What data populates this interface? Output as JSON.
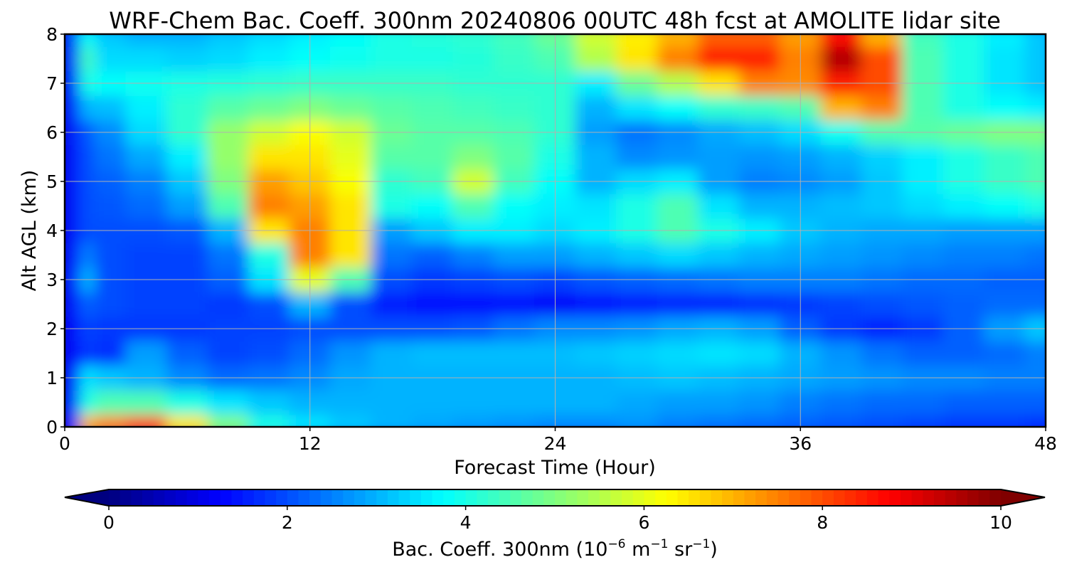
{
  "chart_data": {
    "type": "heatmap",
    "title": "WRF-Chem Bac. Coeff. 300nm  20240806 00UTC 48h fcst at AMOLITE lidar site",
    "xlabel": "Forecast Time (Hour)",
    "ylabel": "Alt AGL (km)",
    "xlim": [
      0,
      48
    ],
    "ylim": [
      0,
      8
    ],
    "xticks": [
      0,
      12,
      24,
      36,
      48
    ],
    "yticks": [
      0,
      1,
      2,
      3,
      4,
      5,
      6,
      7,
      8
    ],
    "grid": true,
    "x": [
      0,
      0.5,
      1,
      2,
      4,
      6,
      8,
      10,
      12,
      14,
      16,
      18,
      20,
      22,
      24,
      26,
      28,
      30,
      32,
      34,
      36,
      38,
      40,
      42,
      44,
      46,
      48
    ],
    "y": [
      0,
      0.5,
      1,
      1.5,
      2,
      2.5,
      3,
      3.5,
      4,
      4.5,
      5,
      5.5,
      6,
      6.5,
      7,
      7.5,
      8
    ],
    "z": [
      [
        1.0,
        1.5,
        7.0,
        7.5,
        8.0,
        6.5,
        5.0,
        4.0,
        3.5,
        3.2,
        3.0,
        2.9,
        2.8,
        2.7,
        2.6,
        2.6,
        2.7,
        2.5,
        2.4,
        2.3,
        2.2,
        2.1,
        2.0,
        1.9,
        1.8,
        1.8,
        1.7
      ],
      [
        1.0,
        1.8,
        4.0,
        4.5,
        4.5,
        4.0,
        3.5,
        3.2,
        3.0,
        3.0,
        3.0,
        3.0,
        3.0,
        3.0,
        3.0,
        3.0,
        2.9,
        2.8,
        2.8,
        2.7,
        2.5,
        2.4,
        2.3,
        2.3,
        2.2,
        2.2,
        2.2
      ],
      [
        1.0,
        1.5,
        3.5,
        3.2,
        3.0,
        2.6,
        2.3,
        2.4,
        2.6,
        2.9,
        3.0,
        3.0,
        3.0,
        3.0,
        3.0,
        3.0,
        3.1,
        3.2,
        3.1,
        3.0,
        2.9,
        2.8,
        2.7,
        2.6,
        2.6,
        2.5,
        2.5
      ],
      [
        1.0,
        1.4,
        1.8,
        1.7,
        2.8,
        2.2,
        1.9,
        2.0,
        2.3,
        2.7,
        3.0,
        3.1,
        3.1,
        3.1,
        3.1,
        3.2,
        3.3,
        3.4,
        3.5,
        3.4,
        3.0,
        2.7,
        2.4,
        2.2,
        2.2,
        2.3,
        2.5
      ],
      [
        1.0,
        1.4,
        1.9,
        1.8,
        1.8,
        1.8,
        1.9,
        1.9,
        2.0,
        2.0,
        2.0,
        2.0,
        2.1,
        2.4,
        2.6,
        2.6,
        2.7,
        2.9,
        3.0,
        2.8,
        2.2,
        1.8,
        1.6,
        1.8,
        2.2,
        2.8,
        3.2
      ],
      [
        1.0,
        1.5,
        2.2,
        2.0,
        1.9,
        1.9,
        1.8,
        2.0,
        3.0,
        2.0,
        1.5,
        1.4,
        1.4,
        1.4,
        1.2,
        1.4,
        1.5,
        1.6,
        1.6,
        1.7,
        1.8,
        1.9,
        2.0,
        2.1,
        2.2,
        2.3,
        2.3
      ],
      [
        1.0,
        1.5,
        3.0,
        2.0,
        1.9,
        1.9,
        2.2,
        3.5,
        6.0,
        4.5,
        2.0,
        1.8,
        1.9,
        2.0,
        1.9,
        2.1,
        2.2,
        2.3,
        2.4,
        2.5,
        2.5,
        2.5,
        2.4,
        2.3,
        2.3,
        2.2,
        2.2
      ],
      [
        1.0,
        1.5,
        2.5,
        2.0,
        1.9,
        1.9,
        2.4,
        4.0,
        7.5,
        6.5,
        2.4,
        2.2,
        2.5,
        2.8,
        2.8,
        3.0,
        3.2,
        3.4,
        3.2,
        3.0,
        2.9,
        2.8,
        2.7,
        2.6,
        2.5,
        2.5,
        2.4
      ],
      [
        1.0,
        1.5,
        2.0,
        2.0,
        2.0,
        2.1,
        3.0,
        6.5,
        7.5,
        6.5,
        2.8,
        3.2,
        3.6,
        3.6,
        3.4,
        3.6,
        4.0,
        4.5,
        4.0,
        3.6,
        3.2,
        3.0,
        2.9,
        2.9,
        2.8,
        2.8,
        2.8
      ],
      [
        1.0,
        1.5,
        2.0,
        2.1,
        2.3,
        2.8,
        4.5,
        7.5,
        7.2,
        6.5,
        4.0,
        3.8,
        4.5,
        3.8,
        3.6,
        3.5,
        4.0,
        4.5,
        3.5,
        3.0,
        3.0,
        3.1,
        3.2,
        3.4,
        3.6,
        3.8,
        4.0
      ],
      [
        1.0,
        1.5,
        2.0,
        2.2,
        2.5,
        3.2,
        5.0,
        7.2,
        6.8,
        6.2,
        4.2,
        4.4,
        5.8,
        4.4,
        3.8,
        3.0,
        3.4,
        3.6,
        2.8,
        2.5,
        2.6,
        2.8,
        3.2,
        3.6,
        4.0,
        4.3,
        4.5
      ],
      [
        1.0,
        1.5,
        2.0,
        2.4,
        2.9,
        3.6,
        5.2,
        6.5,
        6.5,
        6.0,
        4.6,
        4.6,
        5.0,
        4.6,
        4.0,
        3.0,
        2.6,
        2.7,
        2.8,
        2.7,
        2.8,
        3.0,
        3.3,
        3.6,
        4.0,
        4.3,
        4.5
      ],
      [
        1.0,
        1.6,
        2.1,
        2.6,
        3.4,
        4.2,
        5.2,
        5.8,
        6.2,
        5.8,
        4.8,
        4.6,
        4.6,
        4.5,
        4.2,
        2.8,
        2.4,
        2.6,
        2.9,
        3.1,
        3.4,
        3.9,
        4.5,
        4.6,
        4.8,
        5.0,
        5.0
      ],
      [
        1.0,
        1.7,
        3.0,
        3.1,
        3.6,
        4.2,
        4.6,
        4.8,
        5.0,
        4.8,
        4.6,
        4.5,
        4.4,
        4.3,
        4.2,
        3.0,
        3.5,
        3.8,
        4.2,
        4.3,
        4.5,
        7.0,
        7.5,
        4.5,
        4.0,
        3.8,
        3.6
      ],
      [
        1.0,
        1.8,
        4.0,
        3.8,
        3.9,
        4.0,
        4.1,
        4.2,
        4.3,
        4.3,
        4.3,
        4.3,
        4.2,
        4.2,
        4.2,
        3.6,
        4.8,
        5.5,
        6.5,
        7.5,
        7.4,
        8.5,
        8.0,
        4.5,
        4.0,
        3.5,
        3.2
      ],
      [
        1.0,
        2.0,
        4.4,
        3.4,
        3.4,
        3.3,
        3.4,
        3.6,
        3.8,
        3.9,
        4.0,
        4.0,
        4.1,
        4.3,
        4.5,
        5.5,
        6.5,
        7.5,
        8.5,
        8.5,
        7.5,
        9.5,
        8.0,
        4.5,
        4.0,
        3.5,
        3.2
      ],
      [
        1.0,
        2.0,
        3.8,
        3.2,
        3.0,
        3.0,
        3.2,
        3.4,
        3.6,
        3.8,
        4.0,
        4.1,
        4.2,
        4.4,
        4.8,
        5.8,
        6.4,
        7.0,
        7.8,
        7.8,
        7.2,
        8.6,
        7.0,
        4.4,
        4.0,
        3.6,
        3.2
      ]
    ],
    "colorbar": {
      "label_main": "Bac. Coeff. 300nm  (10",
      "label_exp1": "−6",
      "label_mid": " m",
      "label_exp2": "−1",
      "label_mid2": " sr",
      "label_exp3": "−1",
      "label_end": ")",
      "vmin": 0,
      "vmax": 10,
      "ticks": [
        0,
        2,
        4,
        6,
        8,
        10
      ],
      "extend": "both",
      "colormap": "jet"
    }
  }
}
